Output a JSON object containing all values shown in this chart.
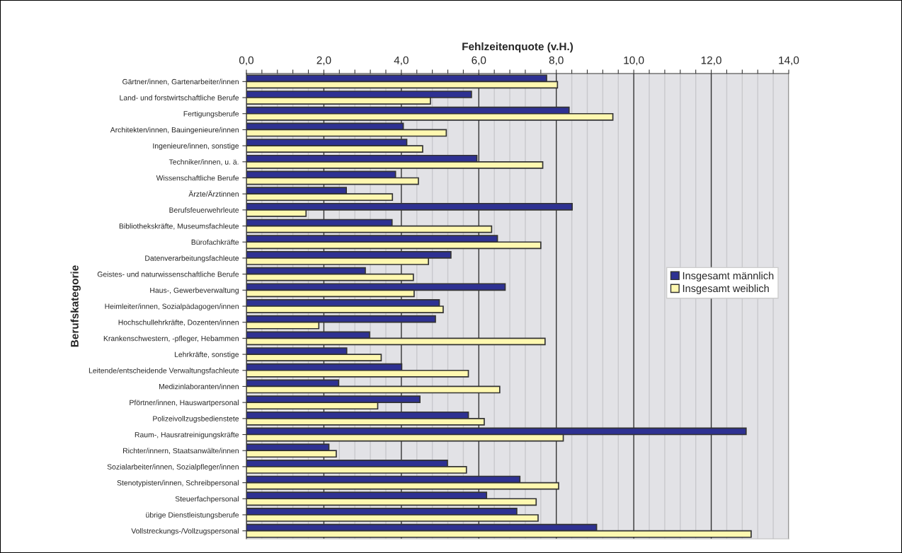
{
  "chart_data": {
    "type": "bar",
    "orientation": "horizontal",
    "xlabel": "Fehlzeitenquote (v.H.)",
    "ylabel": "Berufskategorie",
    "categories": [
      "Gärtner/innen, Gartenarbeiter/innen",
      "Land- und forstwirtschaftliche Berufe",
      "Fertigungsberufe",
      "Architekten/innen, Bauingenieure/innen",
      "Ingenieure/innen, sonstige",
      "Techniker/innen, u. ä.",
      "Wissenschaftliche Berufe",
      "Ärzte/Ärztinnen",
      "Berufsfeuerwehrleute",
      "Bibliothekskräfte, Museumsfachleute",
      "Bürofachkräfte",
      "Datenverarbeitungsfachleute",
      "Geistes- und naturwissenschaftliche Berufe",
      "Haus-, Gewerbeverwaltung",
      "Heimleiter/innen, Sozialpädagogen/innen",
      "Hochschullehrkräfte, Dozenten/innen",
      "Krankenschwestern, -pfleger, Hebammen",
      "Lehrkräfte, sonstige",
      "Leitende/entscheidende Verwaltungsfachleute",
      "Medizinlaboranten/innen",
      "Pförtner/innen, Hauswartpersonal",
      "Polizeivollzugsbedienstete",
      "Raum-, Hausratreinigungskräfte",
      "Richter/innern, Staatsanwälte/innen",
      "Sozialarbeiter/innen, Sozialpfleger/innen",
      "Stenotypisten/innen, Schreibpersonal",
      "Steuerfachpersonal",
      "übrige Dienstleistungsberufe",
      "Vollstreckungs-/Vollzugspersonal"
    ],
    "series": [
      {
        "name": "Insgesamt männlich",
        "color": "#2e3192",
        "values": [
          7.75,
          5.81,
          8.33,
          4.05,
          4.14,
          5.95,
          3.85,
          2.58,
          8.41,
          3.76,
          6.48,
          5.28,
          3.07,
          6.68,
          4.98,
          4.88,
          3.18,
          2.59,
          4.01,
          2.38,
          4.48,
          5.73,
          12.9,
          2.13,
          5.19,
          7.06,
          6.2,
          6.98,
          9.04
        ]
      },
      {
        "name": "Insgesamt weiblich",
        "color": "#fff8b0",
        "values": [
          8.03,
          4.75,
          9.46,
          5.16,
          4.55,
          7.65,
          4.44,
          3.77,
          1.54,
          6.33,
          7.6,
          4.7,
          4.31,
          4.33,
          5.08,
          1.87,
          7.71,
          3.48,
          5.73,
          6.54,
          3.39,
          6.14,
          8.18,
          2.32,
          5.68,
          8.06,
          7.48,
          7.53,
          13.03
        ]
      }
    ],
    "xlim": [
      0,
      14
    ],
    "xticks": [
      {
        "value": 0,
        "label": "0,0"
      },
      {
        "value": 0.4,
        "label": null
      },
      {
        "value": 0.8,
        "label": null
      },
      {
        "value": 1.2,
        "label": null
      },
      {
        "value": 1.6,
        "label": null
      },
      {
        "value": 2,
        "label": "2,0"
      },
      {
        "value": 2.4,
        "label": null
      },
      {
        "value": 2.8,
        "label": null
      },
      {
        "value": 3.2,
        "label": null
      },
      {
        "value": 3.6,
        "label": null
      },
      {
        "value": 4,
        "label": "4,0"
      },
      {
        "value": 4.4,
        "label": null
      },
      {
        "value": 4.8,
        "label": null
      },
      {
        "value": 5.2,
        "label": null
      },
      {
        "value": 5.6,
        "label": null
      },
      {
        "value": 6,
        "label": "6,0"
      },
      {
        "value": 6.4,
        "label": null
      },
      {
        "value": 6.8,
        "label": null
      },
      {
        "value": 7.2,
        "label": null
      },
      {
        "value": 7.6,
        "label": null
      },
      {
        "value": 8,
        "label": "8,0"
      },
      {
        "value": 8.4,
        "label": null
      },
      {
        "value": 8.8,
        "label": null
      },
      {
        "value": 9.2,
        "label": null
      },
      {
        "value": 9.6,
        "label": null
      },
      {
        "value": 10,
        "label": "10,0"
      },
      {
        "value": 10.4,
        "label": null
      },
      {
        "value": 10.8,
        "label": null
      },
      {
        "value": 11.2,
        "label": null
      },
      {
        "value": 11.6,
        "label": null
      },
      {
        "value": 12,
        "label": "12,0"
      },
      {
        "value": 12.4,
        "label": null
      },
      {
        "value": 12.8,
        "label": null
      },
      {
        "value": 13.2,
        "label": null
      },
      {
        "value": 13.6,
        "label": null
      },
      {
        "value": 14,
        "label": "14,0"
      }
    ],
    "grid": "x",
    "legend": "right"
  }
}
